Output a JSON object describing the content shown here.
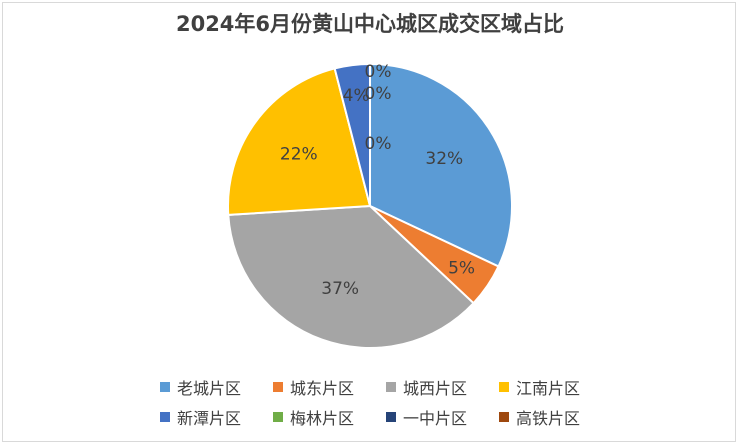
{
  "chart_data": {
    "type": "pie",
    "title": "2024年6月份黄山中心城区成交区域占比",
    "slices": [
      {
        "name": "老城片区",
        "value": 32,
        "label": "32%",
        "color": "#5B9BD5"
      },
      {
        "name": "城东片区",
        "value": 5,
        "label": "5%",
        "color": "#ED7D31"
      },
      {
        "name": "城西片区",
        "value": 37,
        "label": "37%",
        "color": "#A5A5A5"
      },
      {
        "name": "江南片区",
        "value": 22,
        "label": "22%",
        "color": "#FFC000"
      },
      {
        "name": "新潭片区",
        "value": 4,
        "label": "4%",
        "color": "#4472C4"
      },
      {
        "name": "梅林片区",
        "value": 0,
        "label": "0%",
        "color": "#70AD47"
      },
      {
        "name": "一中片区",
        "value": 0,
        "label": "0%",
        "color": "#264478"
      },
      {
        "name": "高铁片区",
        "value": 0,
        "label": "0%",
        "color": "#9E480E"
      }
    ],
    "legend_position": "bottom"
  }
}
